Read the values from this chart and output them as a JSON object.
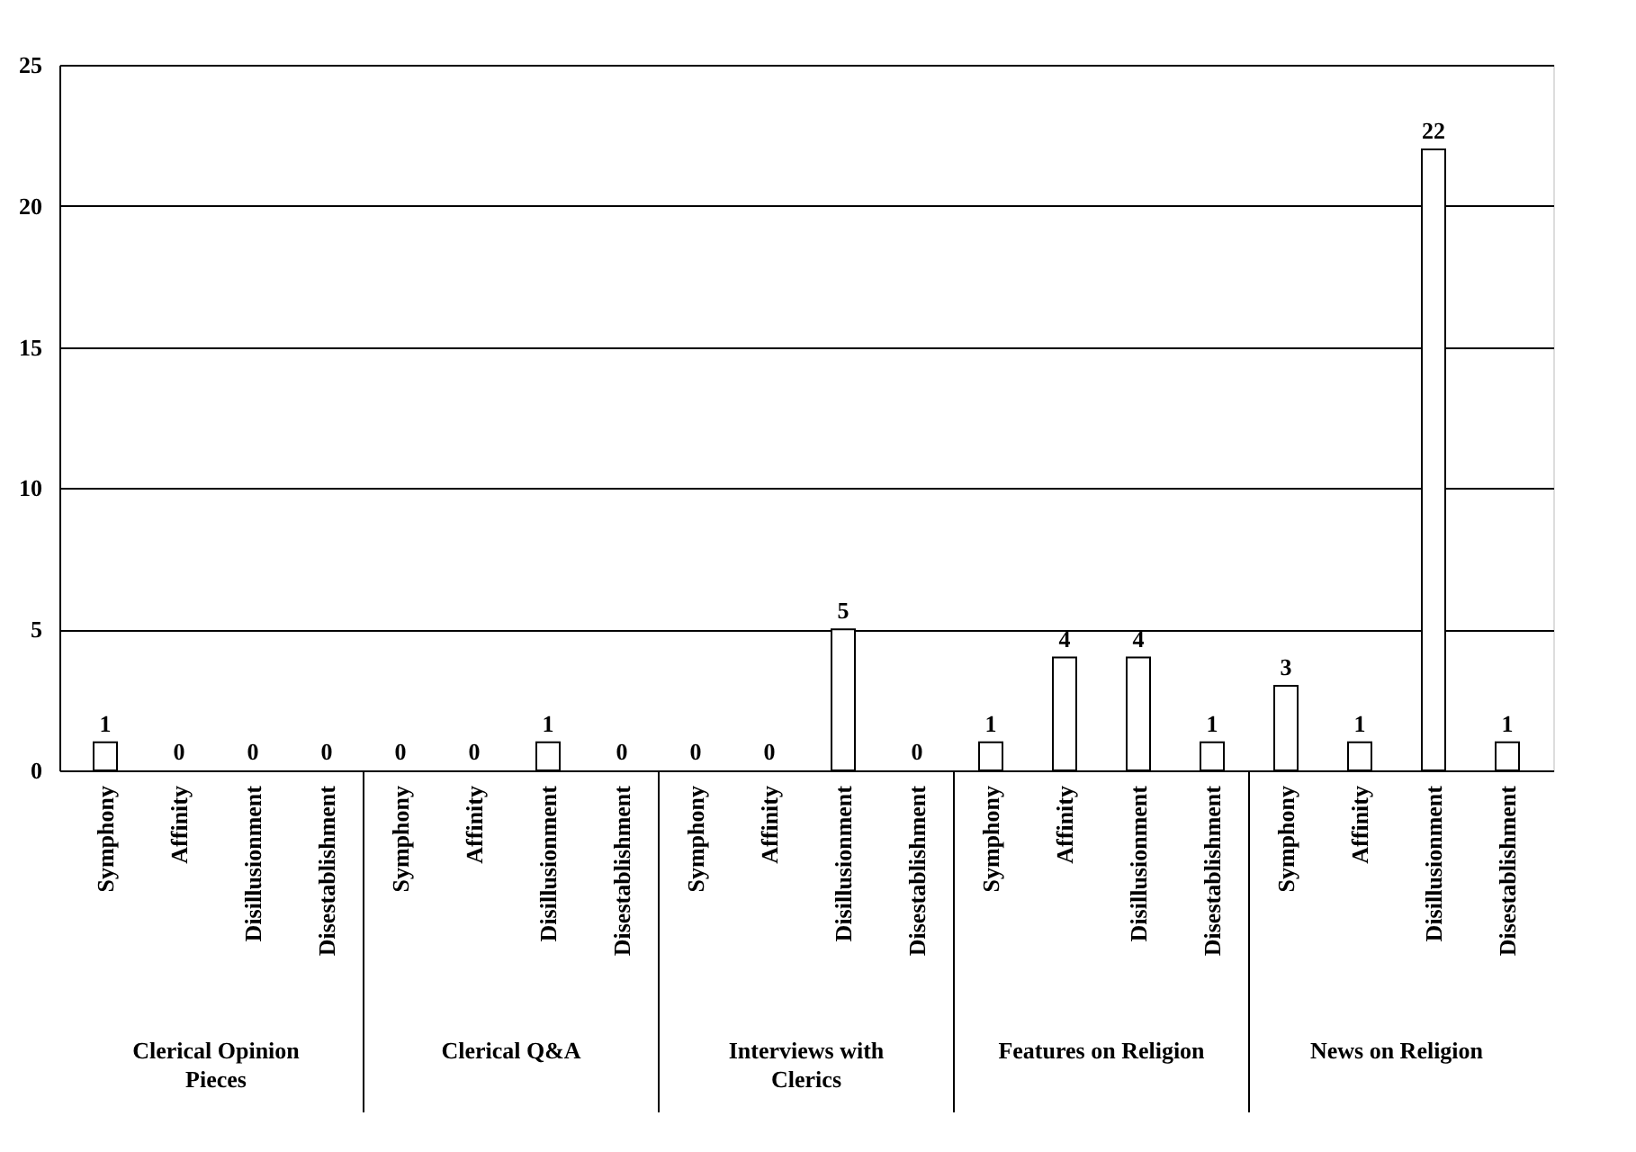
{
  "chart_data": {
    "type": "bar",
    "categories": [
      "Symphony",
      "Affinity",
      "Disillusionment",
      "Disestablishment",
      "Symphony",
      "Affinity",
      "Disillusionment",
      "Disestablishment",
      "Symphony",
      "Affinity",
      "Disillusionment",
      "Disestablishment",
      "Symphony",
      "Affinity",
      "Disillusionment",
      "Disestablishment",
      "Symphony",
      "Affinity",
      "Disillusionment",
      "Disestablishment"
    ],
    "values": [
      1,
      0,
      0,
      0,
      0,
      0,
      1,
      0,
      0,
      0,
      5,
      0,
      1,
      4,
      4,
      1,
      3,
      1,
      22,
      1
    ],
    "color": "#ffffff",
    "annotations": [
      "Clerical Opinion Pieces",
      "Clerical Q&A",
      "Interviews with Clerics",
      "Features on Religion",
      "News on Religion"
    ],
    "ylim": [
      0,
      25
    ],
    "yticks": [
      0,
      5,
      10,
      15,
      20,
      25
    ],
    "grid": "y",
    "data_labels": true
  }
}
